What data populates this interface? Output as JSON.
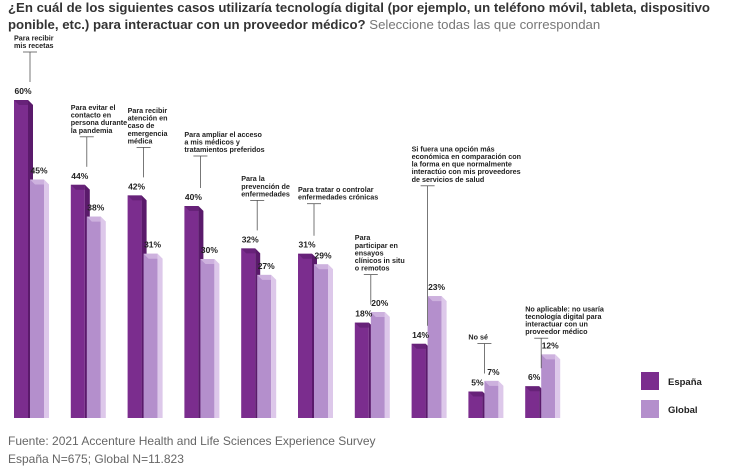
{
  "question": {
    "bold": "¿En cuál de los siguientes casos utilizaría tecnología digital (por ejemplo, un teléfono móvil, tableta, dispositivo ponible, etc.) para interactuar con un proveedor médico?",
    "light": "Seleccione todas las que correspondan"
  },
  "source": {
    "line1": "Fuente: 2021 Accenture Health and Life Sciences Experience Survey",
    "line2": "España N=675; Global N=11.823"
  },
  "colors": {
    "espana": "#7b2d8e",
    "espana_side": "#5a1a6b",
    "global": "#b48fcc",
    "global_side": "#ddc8ea",
    "leader": "#555555"
  },
  "chart_data": {
    "type": "bar",
    "title": "",
    "xlabel": "",
    "ylabel": "",
    "ylim": [
      0,
      60
    ],
    "categories": [
      [
        "Para recibir",
        "mis recetas"
      ],
      [
        "Para evitar el",
        "contacto en",
        "persona durante",
        "la pandemia"
      ],
      [
        "Para recibir",
        "atención en",
        "caso de",
        "emergencia",
        "médica"
      ],
      [
        "Para ampliar el acceso",
        "a mis médicos y",
        "tratamientos preferidos"
      ],
      [
        "Para la",
        "prevención de",
        "enfermedades"
      ],
      [
        "Para tratar o controlar",
        "enfermedades crónicas"
      ],
      [
        "Para",
        "participar en",
        "ensayos",
        "clínicos in situ",
        "o remotos"
      ],
      [
        "Si fuera una opción más",
        "económica en comparación con",
        "la forma en que normalmente",
        "interactúo con mis proveedores",
        "de servicios de salud"
      ],
      [
        "No sé"
      ],
      [
        "No aplicable: no usaría",
        "tecnología digital para",
        "interactuar con un",
        "proveedor médico"
      ]
    ],
    "series": [
      {
        "name": "España",
        "values": [
          60,
          44,
          42,
          40,
          32,
          31,
          18,
          14,
          5,
          6
        ]
      },
      {
        "name": "Global",
        "values": [
          45,
          38,
          31,
          30,
          27,
          29,
          20,
          23,
          7,
          12
        ]
      }
    ],
    "legend": [
      "España",
      "Global"
    ]
  }
}
